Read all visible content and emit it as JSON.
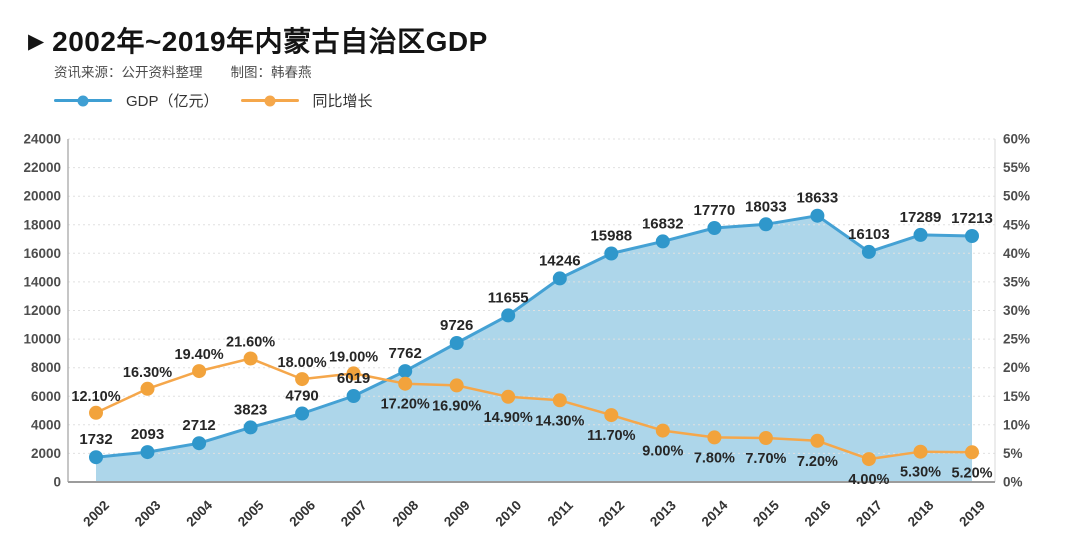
{
  "header": {
    "marker": "▶",
    "title": "2002年~2019年内蒙古自治区GDP",
    "source": "资讯来源：公开资料整理",
    "credit": "制图：韩春燕"
  },
  "legend": {
    "items": [
      {
        "label": "GDP（亿元）",
        "color": "#3f9fd3"
      },
      {
        "label": "同比增长",
        "color": "#f5a74b"
      }
    ]
  },
  "colors": {
    "gdp_line": "#44a1d4",
    "gdp_marker": "#2f97cb",
    "gdp_fill": "#a9d4e9",
    "growth_line": "#f5a74b",
    "growth_marker": "#f2a33c",
    "grid_line": "#e0e0e0",
    "axis_left": "#b3b3b3",
    "axis_right": "#d8d8d8",
    "axis_bottom": "#9c9c9c",
    "tick_text": "#4d4d4d",
    "data_label_text": "#262626"
  },
  "chart_data": {
    "type": "line",
    "title": "2002年~2019年内蒙古自治区GDP",
    "categories": [
      "2002",
      "2003",
      "2004",
      "2005",
      "2006",
      "2007",
      "2008",
      "2009",
      "2010",
      "2011",
      "2012",
      "2013",
      "2014",
      "2015",
      "2016",
      "2017",
      "2018",
      "2019"
    ],
    "series": [
      {
        "name": "GDP（亿元）",
        "type": "area-line",
        "axis": "left",
        "values": [
          1732,
          2093,
          2712,
          3823,
          4790,
          6019,
          7762,
          9726,
          11655,
          14246,
          15988,
          16832,
          17770,
          18033,
          18633,
          16103,
          17289,
          17213
        ],
        "labels": [
          "1732",
          "2093",
          "2712",
          "3823",
          "4790",
          "6019",
          "7762",
          "9726",
          "11655",
          "14246",
          "15988",
          "16832",
          "17770",
          "18033",
          "18633",
          "16103",
          "17289",
          "17213"
        ],
        "label_positions": [
          "above",
          "above",
          "above",
          "above",
          "above",
          "above",
          "above",
          "above",
          "above",
          "above",
          "above",
          "above",
          "above",
          "above",
          "above",
          "above",
          "above",
          "above"
        ]
      },
      {
        "name": "同比增长",
        "type": "line",
        "axis": "right",
        "values": [
          12.1,
          16.3,
          19.4,
          21.6,
          18.0,
          19.0,
          17.2,
          16.9,
          14.9,
          14.3,
          11.7,
          9.0,
          7.8,
          7.7,
          7.2,
          4.0,
          5.3,
          5.2
        ],
        "labels": [
          "12.10%",
          "16.30%",
          "19.40%",
          "21.60%",
          "18.00%",
          "19.00%",
          "17.20%",
          "16.90%",
          "14.90%",
          "14.30%",
          "11.70%",
          "9.00%",
          "7.80%",
          "7.70%",
          "7.20%",
          "4.00%",
          "5.30%",
          "5.20%"
        ],
        "label_positions": [
          "above",
          "above",
          "above",
          "above",
          "above",
          "above",
          "below",
          "below",
          "below",
          "below",
          "below",
          "below",
          "below",
          "below",
          "below",
          "below",
          "below",
          "below"
        ]
      }
    ],
    "left_axis": {
      "min": 0,
      "max": 24000,
      "step": 2000,
      "tick_labels": [
        "0",
        "2000",
        "4000",
        "6000",
        "8000",
        "10000",
        "12000",
        "14000",
        "16000",
        "18000",
        "20000",
        "22000",
        "24000"
      ]
    },
    "right_axis": {
      "min": 0,
      "max": 60,
      "step": 5,
      "tick_labels": [
        "0%",
        "5%",
        "10%",
        "15%",
        "20%",
        "25%",
        "30%",
        "35%",
        "40%",
        "45%",
        "50%",
        "55%",
        "60%"
      ]
    },
    "grid": "horizontal-dotted",
    "legend_position": "top-left"
  }
}
